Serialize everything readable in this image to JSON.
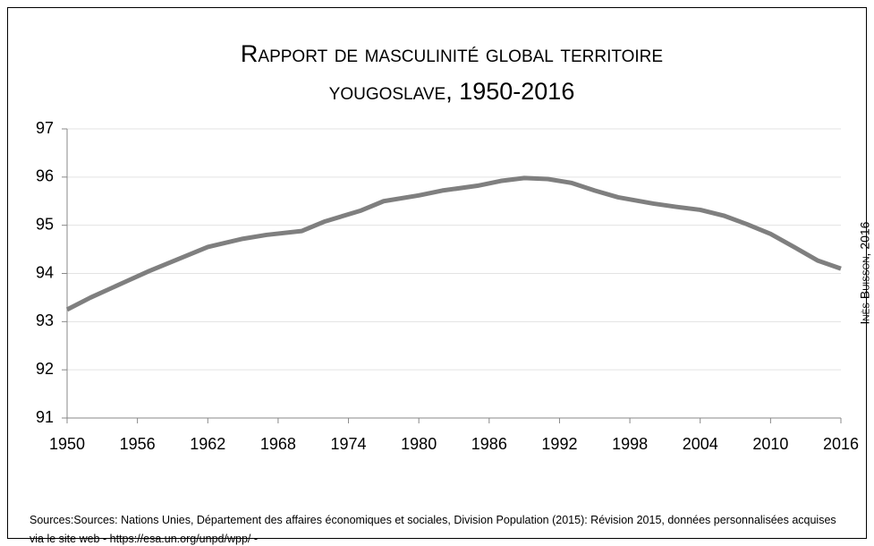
{
  "chart_data": {
    "type": "line",
    "title": [
      "Rapport de masculinité global territoire",
      "yougoslave, 1950-2016"
    ],
    "x": [
      1950,
      1952,
      1955,
      1957,
      1960,
      1962,
      1965,
      1967,
      1970,
      1972,
      1975,
      1977,
      1980,
      1982,
      1985,
      1987,
      1989,
      1991,
      1993,
      1995,
      1997,
      2000,
      2002,
      2004,
      2006,
      2008,
      2010,
      2012,
      2014,
      2016
    ],
    "series": [
      {
        "name": "Rapport de masculinité",
        "color": "#7f7f7f",
        "values": [
          93.25,
          93.5,
          93.83,
          94.05,
          94.35,
          94.55,
          94.72,
          94.8,
          94.88,
          95.08,
          95.3,
          95.5,
          95.62,
          95.72,
          95.82,
          95.92,
          95.98,
          95.96,
          95.88,
          95.72,
          95.58,
          95.45,
          95.38,
          95.32,
          95.2,
          95.02,
          94.82,
          94.55,
          94.27,
          94.1
        ]
      }
    ],
    "xlim": [
      1950,
      2016
    ],
    "xticks": [
      1950,
      1956,
      1962,
      1968,
      1974,
      1980,
      1986,
      1992,
      1998,
      2004,
      2010,
      2016
    ],
    "ylim": [
      91,
      97
    ],
    "yticks": [
      91,
      92,
      93,
      94,
      95,
      96,
      97
    ],
    "grid": true,
    "annotation": "Inès Buisson, 2016",
    "source": "Sources:Sources: Nations Unies, Département des affaires économiques et sociales, Division Population (2015): Révision 2015, données personnalisées acquises via le site web - https://esa.un.org/unpd/wpp/ -"
  }
}
